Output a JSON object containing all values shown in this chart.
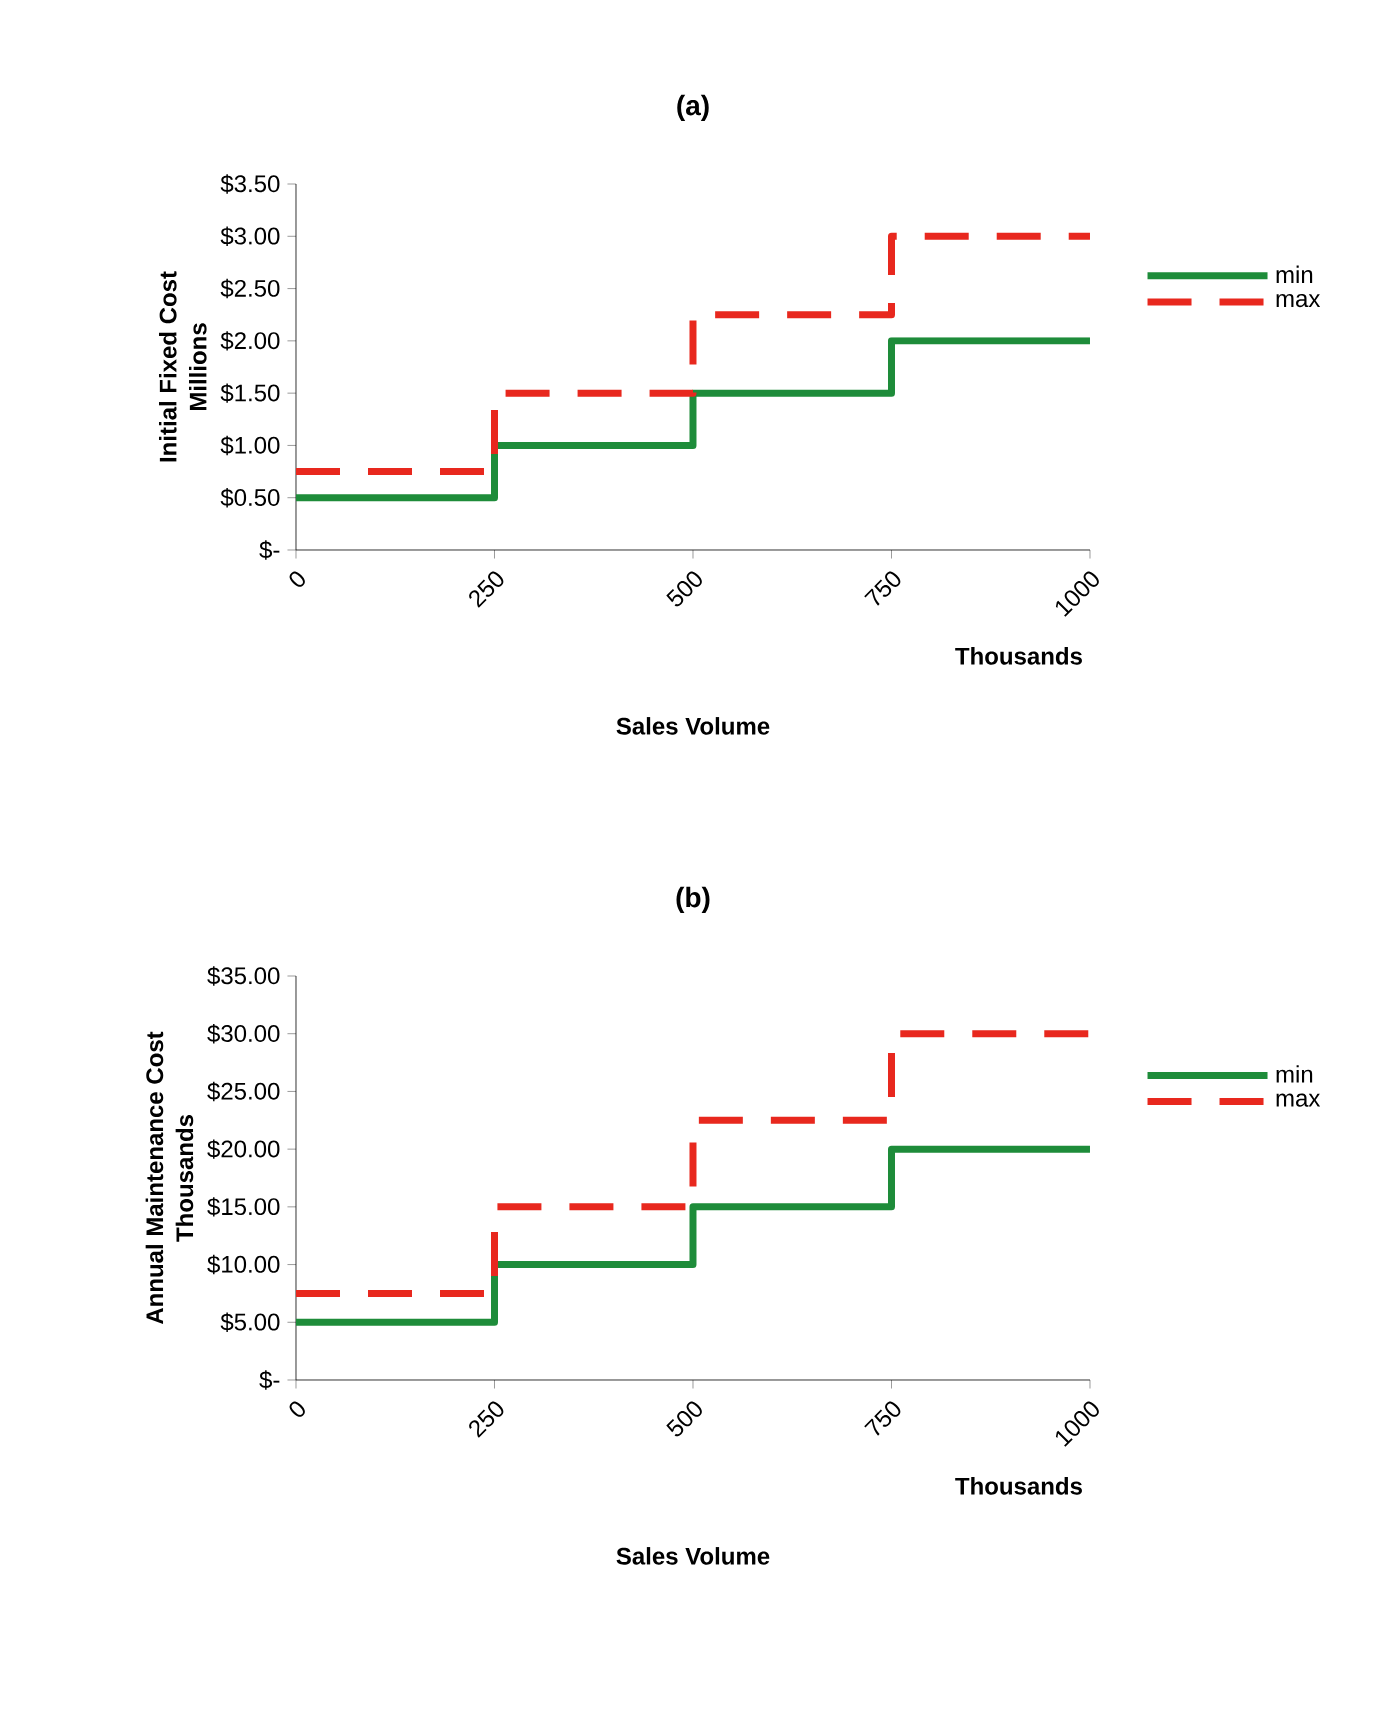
{
  "chart_data": [
    {
      "type": "step",
      "title": "(a)",
      "xlabel": "Sales Volume",
      "ylabel": "Initial Fixed Cost",
      "annotations": [
        "Millions",
        "Thousands"
      ],
      "x": [
        0,
        250,
        500,
        750,
        1000
      ],
      "series": [
        {
          "name": "min",
          "color": "#1e8c3a",
          "line_style": "solid",
          "values": [
            0.5,
            1.0,
            1.5,
            2.0,
            2.0
          ]
        },
        {
          "name": "max",
          "color": "#e8281e",
          "line_style": "dashed",
          "values": [
            0.75,
            1.5,
            2.25,
            3.0,
            3.0
          ]
        }
      ],
      "xlim": [
        0,
        1000
      ],
      "xticks": [
        0,
        250,
        500,
        750,
        1000
      ],
      "ylim": [
        0,
        3.5
      ],
      "yticks": [
        {
          "value": 0,
          "label": "$-"
        },
        {
          "value": 0.5,
          "label": "$0.50"
        },
        {
          "value": 1.0,
          "label": "$1.00"
        },
        {
          "value": 1.5,
          "label": "$1.50"
        },
        {
          "value": 2.0,
          "label": "$2.00"
        },
        {
          "value": 2.5,
          "label": "$2.50"
        },
        {
          "value": 3.0,
          "label": "$3.00"
        },
        {
          "value": 3.5,
          "label": "$3.50"
        }
      ],
      "grid": false,
      "legend": "right"
    },
    {
      "type": "step",
      "title": "(b)",
      "xlabel": "Sales Volume",
      "ylabel": "Annual Maintenance Cost",
      "annotations": [
        "Thousands",
        "Thousands"
      ],
      "x": [
        0,
        250,
        500,
        750,
        1000
      ],
      "series": [
        {
          "name": "min",
          "color": "#1e8c3a",
          "line_style": "solid",
          "values": [
            5,
            10,
            15,
            20,
            20
          ]
        },
        {
          "name": "max",
          "color": "#e8281e",
          "line_style": "dashed",
          "values": [
            7.5,
            15,
            22.5,
            30,
            30
          ]
        }
      ],
      "xlim": [
        0,
        1000
      ],
      "xticks": [
        0,
        250,
        500,
        750,
        1000
      ],
      "ylim": [
        0,
        35
      ],
      "yticks": [
        {
          "value": 0,
          "label": "$-"
        },
        {
          "value": 5,
          "label": "$5.00"
        },
        {
          "value": 10,
          "label": "$10.00"
        },
        {
          "value": 15,
          "label": "$15.00"
        },
        {
          "value": 20,
          "label": "$20.00"
        },
        {
          "value": 25,
          "label": "$25.00"
        },
        {
          "value": 30,
          "label": "$30.00"
        },
        {
          "value": 35,
          "label": "$35.00"
        }
      ],
      "grid": false,
      "legend": "right"
    }
  ]
}
